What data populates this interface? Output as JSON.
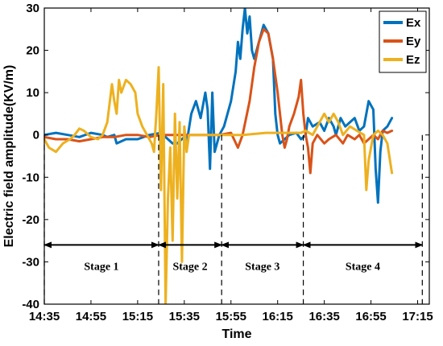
{
  "chart_data": {
    "type": "line",
    "title": "",
    "xlabel": "Time",
    "ylabel": "Electric field amplitude(KV/m)",
    "x_ticks": [
      "14:35",
      "14:55",
      "15:15",
      "15:35",
      "15:55",
      "16:15",
      "16:35",
      "16:55",
      "17:15"
    ],
    "x_range_minutes": [
      875,
      1040
    ],
    "ylim": [
      -40,
      30
    ],
    "y_ticks": [
      -40,
      -30,
      -20,
      -10,
      0,
      10,
      20,
      30
    ],
    "grid": false,
    "legend_position": "top-right",
    "series": [
      {
        "name": "Ex",
        "color": "#0072BD",
        "points": [
          [
            875,
            0
          ],
          [
            880,
            0.5
          ],
          [
            885,
            0
          ],
          [
            890,
            -0.5
          ],
          [
            895,
            0.5
          ],
          [
            900,
            0
          ],
          [
            902,
            -0.5
          ],
          [
            905,
            0
          ],
          [
            906,
            -2
          ],
          [
            910,
            -1
          ],
          [
            915,
            -1
          ],
          [
            920,
            0
          ],
          [
            925,
            0.5
          ],
          [
            928,
            -1
          ],
          [
            930,
            -2
          ],
          [
            932,
            -2
          ],
          [
            935,
            -0.5
          ],
          [
            936,
            -2
          ],
          [
            938,
            5
          ],
          [
            940,
            8
          ],
          [
            942,
            4
          ],
          [
            944,
            10
          ],
          [
            945,
            6
          ],
          [
            946,
            -8
          ],
          [
            947,
            10
          ],
          [
            948,
            -4
          ],
          [
            950,
            0
          ],
          [
            952,
            2
          ],
          [
            955,
            8
          ],
          [
            957,
            15
          ],
          [
            958,
            22
          ],
          [
            959,
            18
          ],
          [
            960,
            25
          ],
          [
            961,
            30
          ],
          [
            962,
            24
          ],
          [
            963,
            28
          ],
          [
            964,
            20
          ],
          [
            965,
            18
          ],
          [
            967,
            22
          ],
          [
            969,
            26
          ],
          [
            971,
            24
          ],
          [
            973,
            18
          ],
          [
            974,
            5
          ],
          [
            975,
            0
          ],
          [
            976,
            -2
          ],
          [
            978,
            -1
          ],
          [
            980,
            0
          ],
          [
            983,
            0.5
          ],
          [
            985,
            -1
          ],
          [
            987,
            0
          ],
          [
            988,
            4
          ],
          [
            990,
            2
          ],
          [
            993,
            3
          ],
          [
            995,
            1
          ],
          [
            997,
            4
          ],
          [
            999,
            2
          ],
          [
            1000,
            0
          ],
          [
            1002,
            4
          ],
          [
            1004,
            2
          ],
          [
            1006,
            3
          ],
          [
            1008,
            4
          ],
          [
            1010,
            1
          ],
          [
            1012,
            2
          ],
          [
            1014,
            8
          ],
          [
            1016,
            6
          ],
          [
            1017,
            -8
          ],
          [
            1018,
            -16
          ],
          [
            1019,
            -4
          ],
          [
            1020,
            1
          ],
          [
            1022,
            2
          ],
          [
            1024,
            4
          ]
        ]
      },
      {
        "name": "Ey",
        "color": "#D95319",
        "points": [
          [
            875,
            -0.5
          ],
          [
            880,
            -1
          ],
          [
            885,
            -1
          ],
          [
            890,
            -1.5
          ],
          [
            895,
            -1
          ],
          [
            900,
            -0.5
          ],
          [
            905,
            -0.5
          ],
          [
            910,
            0
          ],
          [
            915,
            0
          ],
          [
            920,
            -0.5
          ],
          [
            925,
            0
          ],
          [
            930,
            0
          ],
          [
            935,
            0
          ],
          [
            940,
            0
          ],
          [
            945,
            0
          ],
          [
            950,
            0
          ],
          [
            955,
            0.5
          ],
          [
            958,
            -3
          ],
          [
            960,
            0
          ],
          [
            963,
            8
          ],
          [
            965,
            16
          ],
          [
            967,
            22
          ],
          [
            969,
            25
          ],
          [
            971,
            24
          ],
          [
            973,
            18
          ],
          [
            975,
            10
          ],
          [
            976,
            5
          ],
          [
            977,
            0
          ],
          [
            978,
            -3
          ],
          [
            979,
            -1
          ],
          [
            980,
            2
          ],
          [
            982,
            5
          ],
          [
            984,
            9
          ],
          [
            985,
            13
          ],
          [
            986,
            5
          ],
          [
            987,
            0
          ],
          [
            988,
            -3
          ],
          [
            989,
            -9
          ],
          [
            990,
            -2
          ],
          [
            992,
            0
          ],
          [
            995,
            -2
          ],
          [
            997,
            -1
          ],
          [
            1000,
            0
          ],
          [
            1003,
            -2
          ],
          [
            1005,
            0
          ],
          [
            1008,
            -1
          ],
          [
            1010,
            0
          ],
          [
            1012,
            -2
          ],
          [
            1014,
            -1
          ],
          [
            1016,
            0
          ],
          [
            1018,
            -1
          ],
          [
            1020,
            1
          ],
          [
            1022,
            0.5
          ],
          [
            1024,
            1
          ]
        ]
      },
      {
        "name": "Ez",
        "color": "#EDB120",
        "points": [
          [
            875,
            -1
          ],
          [
            877,
            -3
          ],
          [
            880,
            -4
          ],
          [
            883,
            -2
          ],
          [
            886,
            -1
          ],
          [
            888,
            0
          ],
          [
            890,
            1.5
          ],
          [
            892,
            1
          ],
          [
            895,
            -0.5
          ],
          [
            898,
            -1
          ],
          [
            900,
            0
          ],
          [
            902,
            3
          ],
          [
            904,
            12
          ],
          [
            905,
            8
          ],
          [
            906,
            5
          ],
          [
            907,
            13
          ],
          [
            908,
            10
          ],
          [
            910,
            13
          ],
          [
            912,
            12
          ],
          [
            914,
            10
          ],
          [
            915,
            5
          ],
          [
            917,
            2
          ],
          [
            919,
            0
          ],
          [
            921,
            -2
          ],
          [
            922,
            -4
          ],
          [
            923,
            5
          ],
          [
            924,
            16
          ],
          [
            925,
            -13
          ],
          [
            926,
            12
          ],
          [
            927,
            -40
          ],
          [
            928,
            -15
          ],
          [
            929,
            -3
          ],
          [
            930,
            -25
          ],
          [
            931,
            5
          ],
          [
            932,
            -15
          ],
          [
            933,
            3
          ],
          [
            934,
            -30
          ],
          [
            935,
            2
          ],
          [
            936,
            -4
          ],
          [
            937,
            0
          ],
          [
            940,
            0
          ],
          [
            950,
            0
          ],
          [
            960,
            0
          ],
          [
            970,
            0.5
          ],
          [
            980,
            0.5
          ],
          [
            985,
            0.5
          ],
          [
            987,
            1
          ],
          [
            990,
            0
          ],
          [
            993,
            3
          ],
          [
            995,
            5
          ],
          [
            997,
            3
          ],
          [
            999,
            5
          ],
          [
            1001,
            3
          ],
          [
            1003,
            0
          ],
          [
            1006,
            2
          ],
          [
            1009,
            1
          ],
          [
            1012,
            0
          ],
          [
            1013,
            -13
          ],
          [
            1014,
            -6
          ],
          [
            1016,
            0
          ],
          [
            1018,
            1
          ],
          [
            1020,
            0
          ],
          [
            1022,
            -2
          ],
          [
            1024,
            -9
          ]
        ]
      }
    ],
    "stages": [
      {
        "label": "Stage 1",
        "start": 875,
        "end": 924
      },
      {
        "label": "Stage 2",
        "start": 924,
        "end": 951
      },
      {
        "label": "Stage 3",
        "start": 951,
        "end": 986
      },
      {
        "label": "Stage 4",
        "start": 986,
        "end": 1037
      }
    ],
    "stage_arrow_y": -26,
    "stage_label_y": -31,
    "stage_divider_range": [
      -40,
      0
    ]
  }
}
